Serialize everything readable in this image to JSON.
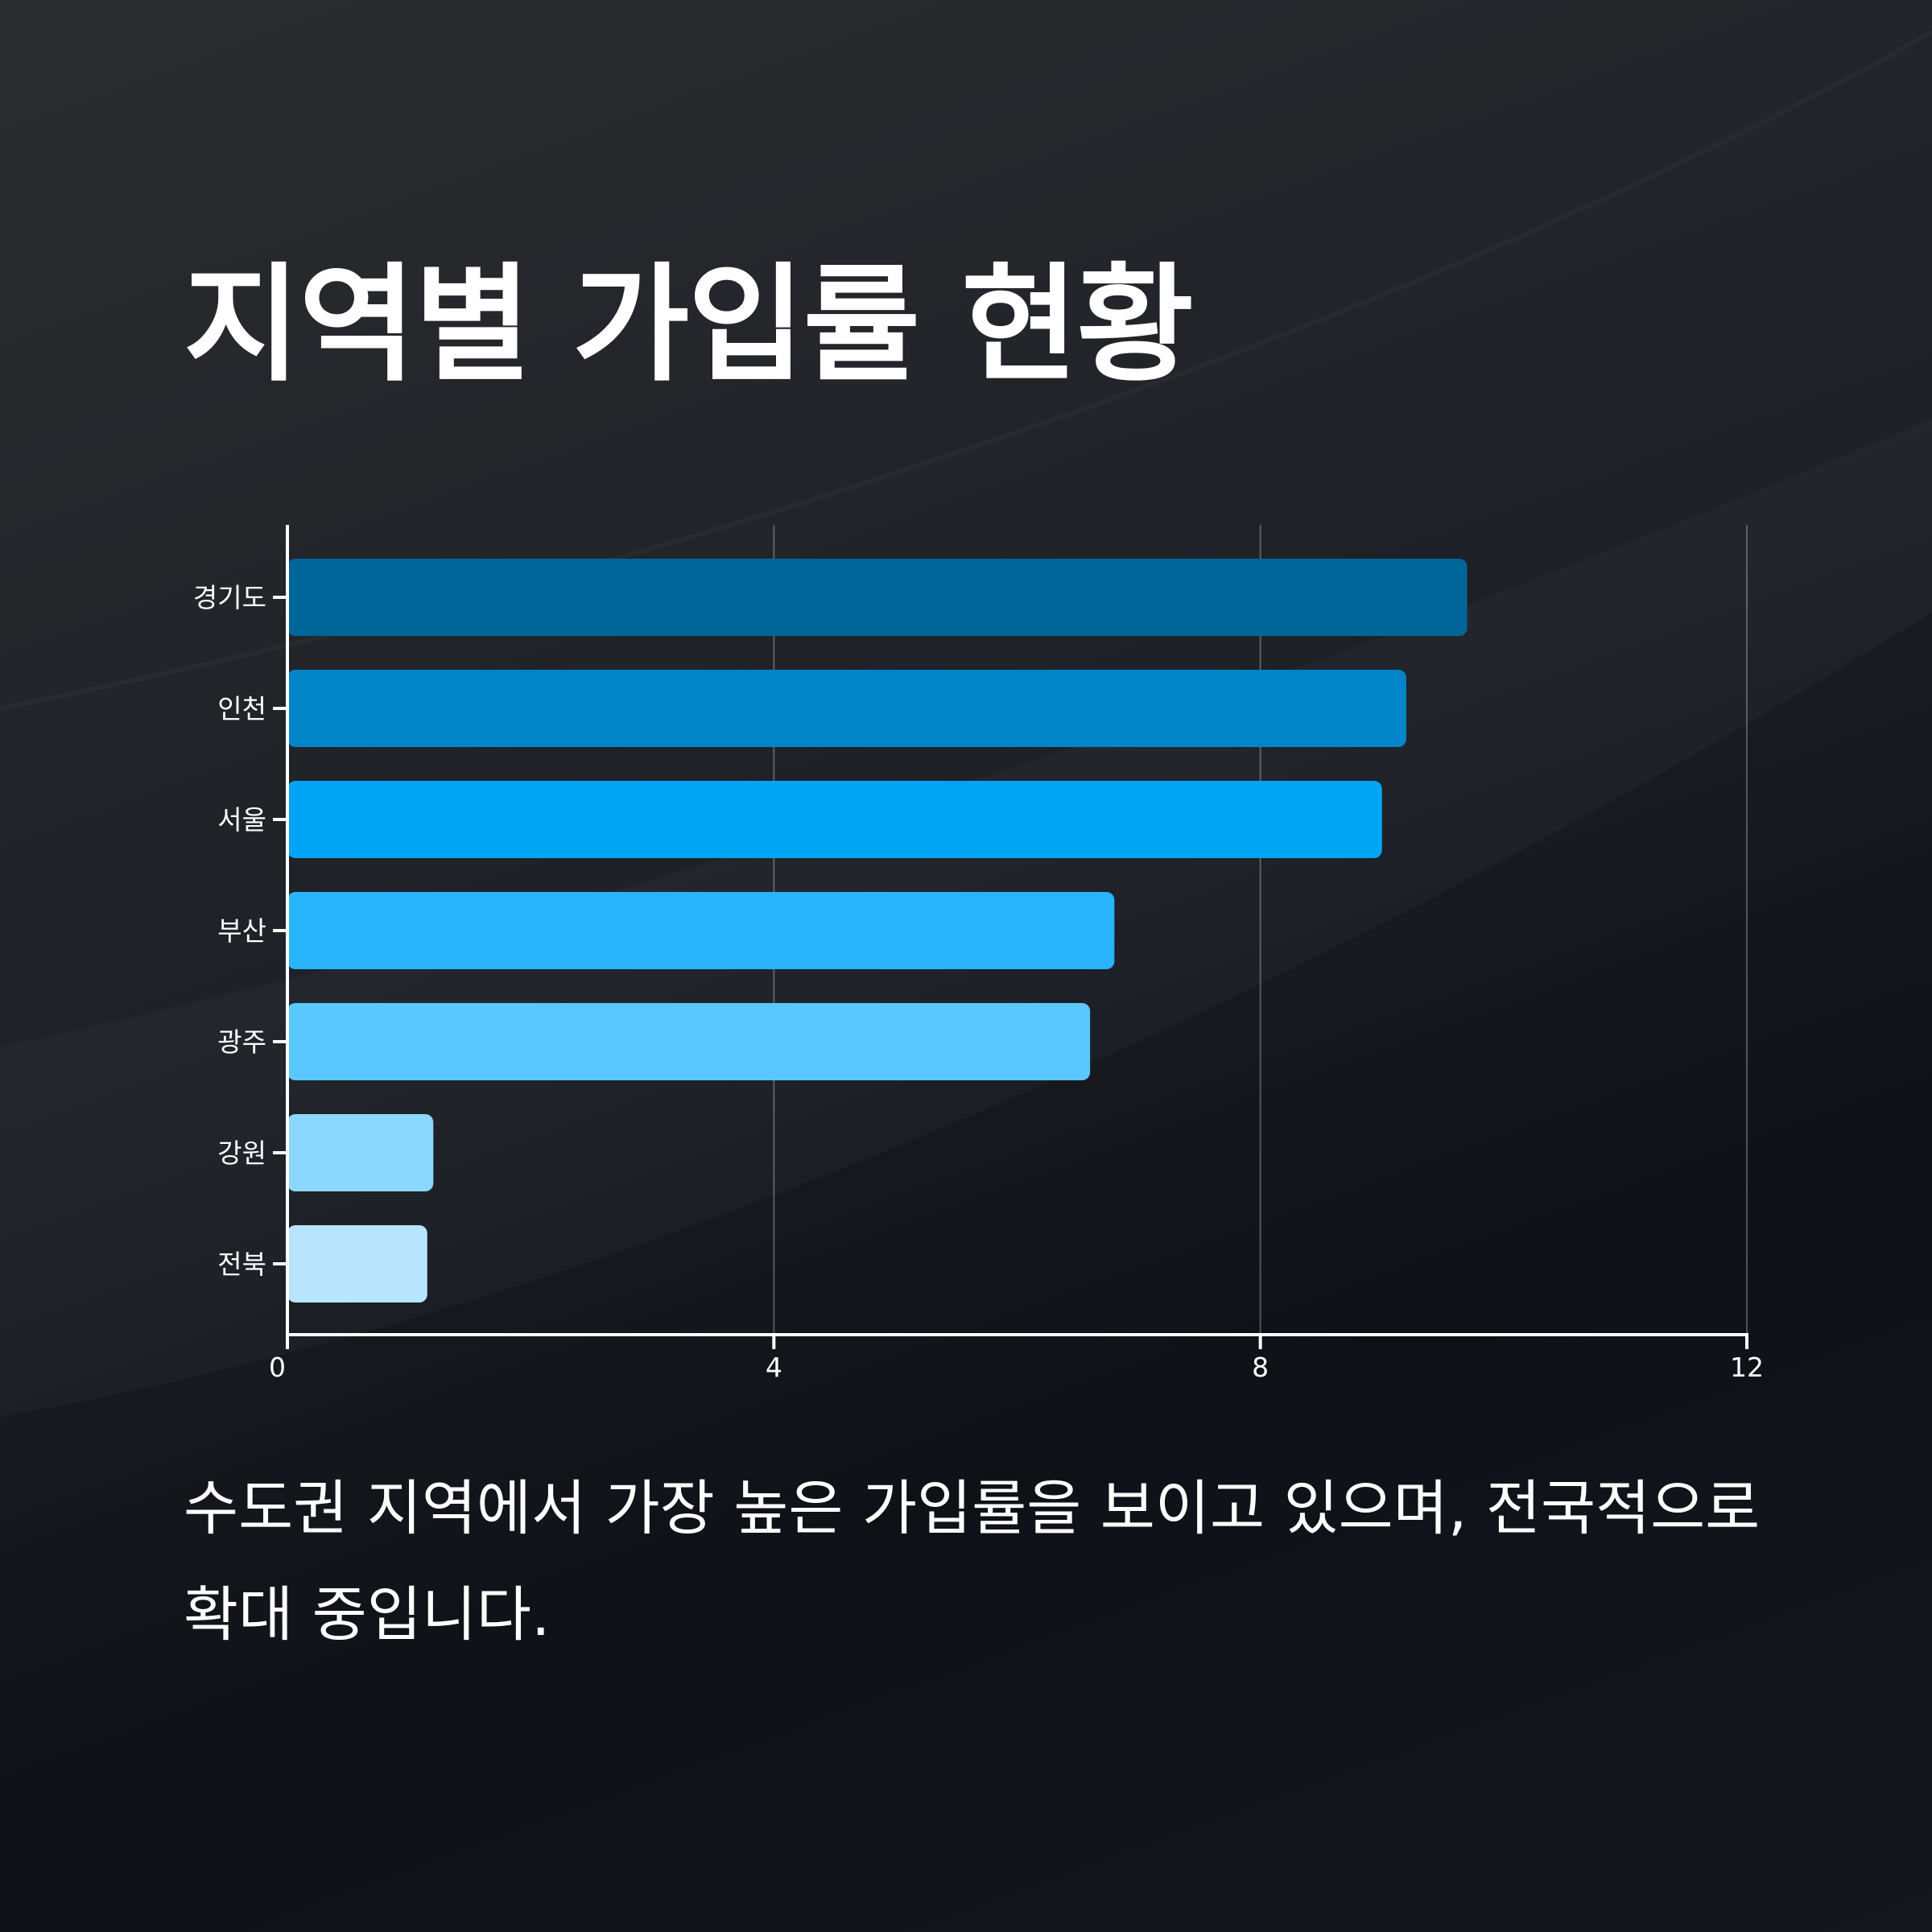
{
  "title": "지역별 가입률 현황",
  "caption": "수도권 지역에서 가장 높은 가입률을 보이고 있으며, 전국적으로 확대 중입니다.",
  "chart_data": {
    "type": "bar",
    "orientation": "horizontal",
    "categories": [
      "경기도",
      "인천",
      "서울",
      "부산",
      "광주",
      "강원",
      "전북"
    ],
    "values": [
      9.7,
      9.2,
      9.0,
      6.8,
      6.6,
      1.2,
      1.15
    ],
    "colors": [
      "#006699",
      "#0085c8",
      "#00a6f5",
      "#28b4fb",
      "#5ac8fc",
      "#8cd7fd",
      "#b8e5fd"
    ],
    "xlim": [
      0,
      12
    ],
    "xticks": [
      0,
      4,
      8,
      12
    ],
    "grid": true,
    "title": "",
    "xlabel": "",
    "ylabel": ""
  }
}
